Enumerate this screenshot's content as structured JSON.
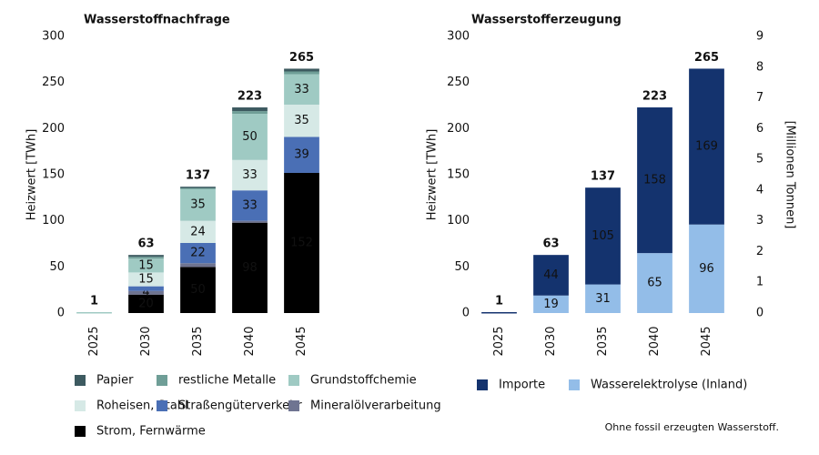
{
  "note": "Ohne fossil erzeugten Wasserstoff.",
  "chart_data": [
    {
      "type": "stacked_bar",
      "title": "Wasserstoffnachfrage",
      "y_label": "Heizwert [TWh]",
      "categories": [
        "2025",
        "2030",
        "2035",
        "2040",
        "2045"
      ],
      "ylim": [
        0,
        300
      ],
      "yticks": [
        0,
        50,
        100,
        150,
        200,
        250,
        300
      ],
      "totals": [
        1,
        63,
        137,
        223,
        265
      ],
      "series": [
        {
          "name": "Papier",
          "color": "#3d5a60",
          "values": [
            0,
            2,
            1,
            4,
            3
          ]
        },
        {
          "name": "restliche Metalle",
          "color": "#6f9e97",
          "values": [
            0,
            2,
            1,
            3,
            3
          ]
        },
        {
          "name": "Grundstoffchemie",
          "color": "#9fcac3",
          "label_color": "#ffffff",
          "values": [
            1,
            15,
            35,
            50,
            33
          ],
          "value_labels": [
            null,
            "15",
            "35",
            "50",
            "33"
          ]
        },
        {
          "name": "Roheisen, Stahl",
          "color": "#d6e9e6",
          "label_color": "#222222",
          "values": [
            0,
            15,
            24,
            33,
            35
          ],
          "value_labels": [
            null,
            "15",
            "24",
            "33",
            "35"
          ]
        },
        {
          "name": "Straßengüterverkehr",
          "color": "#4a6fb5",
          "label_color": "#ffffff",
          "values": [
            0,
            5,
            22,
            33,
            39
          ],
          "value_labels": [
            null,
            null,
            "22",
            "33",
            "39"
          ]
        },
        {
          "name": "Mineralölverarbeitung",
          "color": "#6f7491",
          "label_color": "#ffffff",
          "values": [
            0,
            4,
            4,
            2,
            0
          ],
          "value_labels": [
            null,
            "4",
            null,
            null,
            null
          ]
        },
        {
          "name": "Strom, Fernwärme",
          "color": "#000000",
          "label_color": "#ffffff",
          "values": [
            0,
            20,
            50,
            98,
            152
          ],
          "value_labels": [
            null,
            "20",
            "50",
            "98",
            "152"
          ]
        }
      ]
    },
    {
      "type": "stacked_bar",
      "title": "Wasserstofferzeugung",
      "y_label": "Heizwert [TWh]",
      "y2_label": "[Millionen Tonnen]",
      "categories": [
        "2025",
        "2030",
        "2035",
        "2040",
        "2045"
      ],
      "ylim": [
        0,
        300
      ],
      "yticks": [
        0,
        50,
        100,
        150,
        200,
        250,
        300
      ],
      "y2lim": [
        0,
        9
      ],
      "y2ticks": [
        0,
        1,
        2,
        3,
        4,
        5,
        6,
        7,
        8,
        9
      ],
      "totals": [
        1,
        63,
        137,
        223,
        265
      ],
      "series": [
        {
          "name": "Importe",
          "color": "#14336e",
          "label_color": "#ffffff",
          "values": [
            1,
            44,
            105,
            158,
            169
          ],
          "value_labels": [
            null,
            "44",
            "105",
            "158",
            "169"
          ]
        },
        {
          "name": "Wasserelektrolyse (Inland)",
          "color": "#93bde8",
          "label_color": "#14336e",
          "values": [
            0,
            19,
            31,
            65,
            96
          ],
          "value_labels": [
            null,
            "19",
            "31",
            "65",
            "96"
          ]
        }
      ]
    }
  ]
}
